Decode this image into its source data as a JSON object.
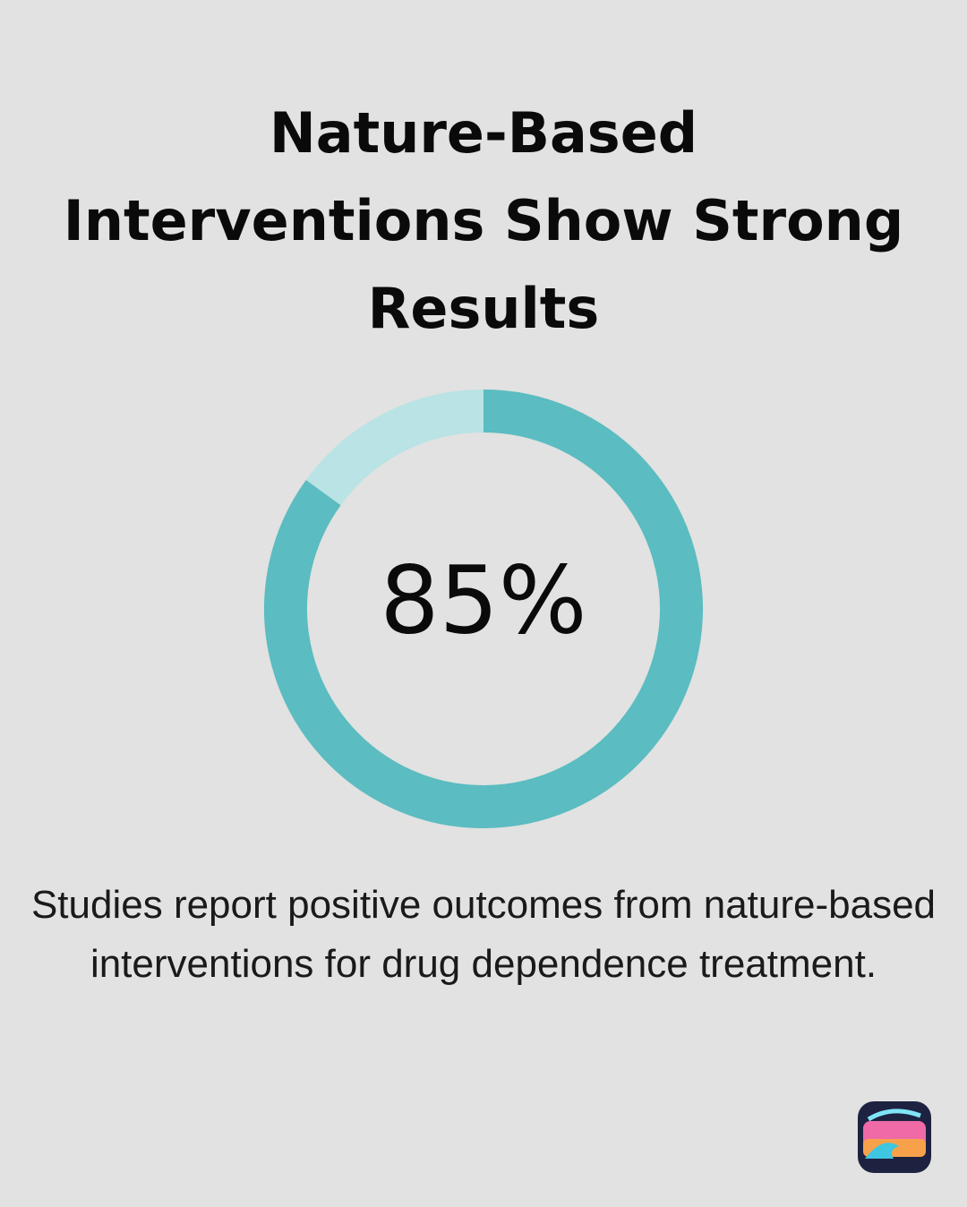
{
  "chart_data": {
    "type": "donut",
    "title": "Nature-Based\nInterventions Show Strong\nResults",
    "value": 85,
    "value_label": "85%",
    "range": [
      0,
      100
    ],
    "color": "#5bbcc1",
    "track_color": "#b9e3e5",
    "caption": "Studies report positive outcomes from nature-based interventions for drug dependence treatment."
  }
}
